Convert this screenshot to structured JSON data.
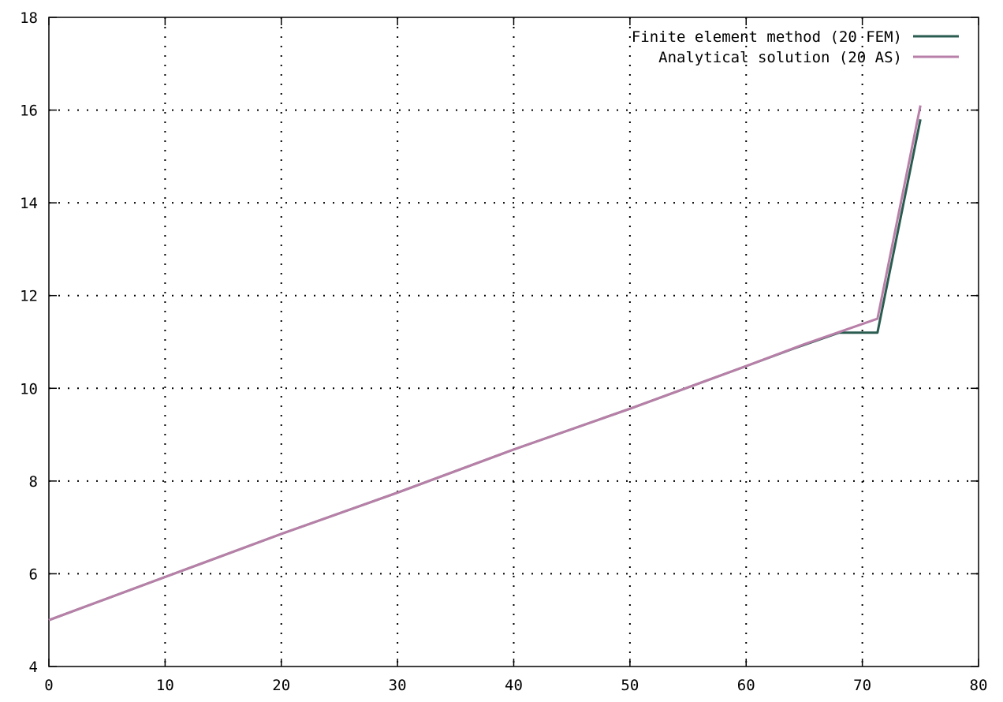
{
  "chart_data": {
    "type": "line",
    "title": "",
    "xlabel": "",
    "ylabel": "",
    "xlim": [
      0,
      80
    ],
    "ylim": [
      4,
      18
    ],
    "x_ticks": [
      0,
      10,
      20,
      30,
      40,
      50,
      60,
      70,
      80
    ],
    "y_ticks": [
      4,
      6,
      8,
      10,
      12,
      14,
      16,
      18
    ],
    "grid": true,
    "legend_position": "top-right",
    "series": [
      {
        "name": "Finite element method (20 FEM)",
        "color": "#2a5c50",
        "points": [
          [
            0,
            5.0
          ],
          [
            10,
            5.93
          ],
          [
            20,
            6.86
          ],
          [
            30,
            7.75
          ],
          [
            40,
            8.68
          ],
          [
            50,
            9.56
          ],
          [
            60,
            10.48
          ],
          [
            64,
            10.85
          ],
          [
            68,
            11.2
          ],
          [
            71.3,
            11.2
          ],
          [
            75,
            15.8
          ]
        ]
      },
      {
        "name": "Analytical solution (20 AS)",
        "color": "#b87fa8",
        "points": [
          [
            0,
            5.0
          ],
          [
            10,
            5.93
          ],
          [
            20,
            6.86
          ],
          [
            30,
            7.75
          ],
          [
            40,
            8.68
          ],
          [
            50,
            9.56
          ],
          [
            60,
            10.48
          ],
          [
            65,
            10.95
          ],
          [
            71.3,
            11.5
          ],
          [
            75,
            16.1
          ]
        ]
      }
    ]
  }
}
